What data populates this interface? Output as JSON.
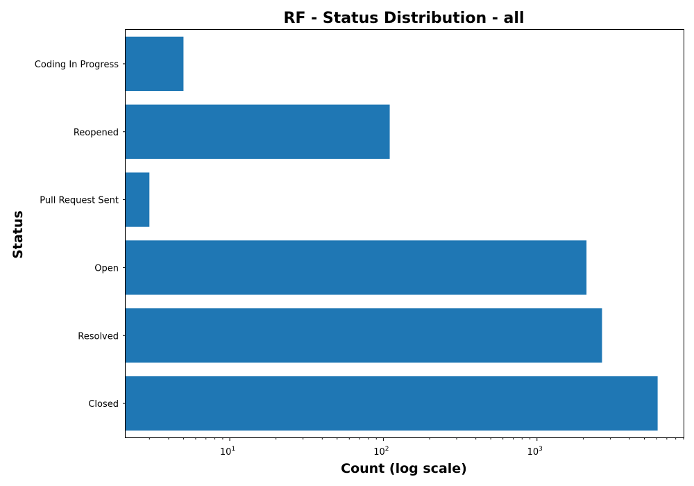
{
  "chart_data": {
    "type": "bar",
    "orientation": "horizontal",
    "title": "RF - Status Distribution - all",
    "xlabel": "Count (log scale)",
    "ylabel": "Status",
    "x_scale": "log",
    "xlim": [
      2.1,
      9000
    ],
    "x_major_ticks": [
      {
        "value": 10,
        "base": "10",
        "exp": "1"
      },
      {
        "value": 100,
        "base": "10",
        "exp": "2"
      },
      {
        "value": 1000,
        "base": "10",
        "exp": "3"
      }
    ],
    "categories": [
      "Coding In Progress",
      "Reopened",
      "Pull Request Sent",
      "Open",
      "Resolved",
      "Closed"
    ],
    "values": [
      5,
      110,
      3,
      2100,
      2650,
      6100
    ],
    "bar_color": "#1f77b4",
    "grid": false,
    "legend": "none"
  }
}
